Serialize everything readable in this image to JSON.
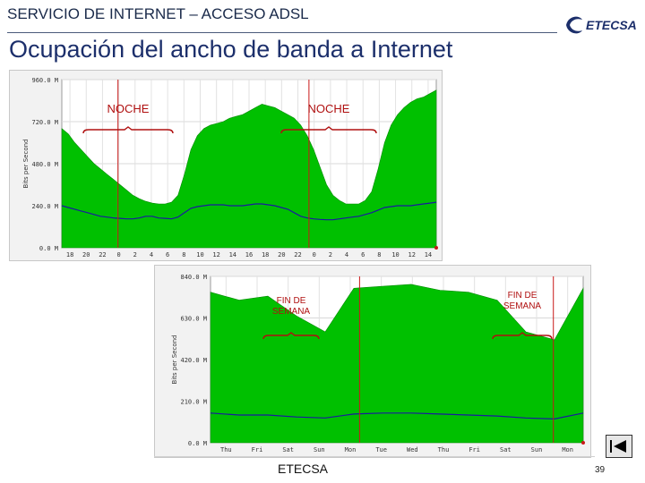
{
  "header": {
    "title": "SERVICIO DE INTERNET – ACCESO ADSL",
    "subtitle": "Ocupación del ancho de banda a Internet",
    "logo_text": "ETECSA"
  },
  "footer": {
    "label": "ETECSA",
    "page_number": "39"
  },
  "icons": {
    "nav": "end-show-icon",
    "logo": "etecsa-logo-icon"
  },
  "colors": {
    "fill": "#00c000",
    "line": "#1a1aa0",
    "marker": "#c81818",
    "annotation": "#b01010",
    "title": "#1c2f6b"
  },
  "chart_data": [
    {
      "type": "area",
      "ylabel": "Bits per Second",
      "ylim": [
        0,
        960000
      ],
      "yticks": [
        "0.0 M",
        "240.0 M",
        "480.0 M",
        "720.0 M",
        "960.0 M"
      ],
      "xticks": [
        "18",
        "20",
        "22",
        "0",
        "2",
        "4",
        "6",
        "8",
        "10",
        "12",
        "14",
        "16",
        "18",
        "20",
        "22",
        "0",
        "2",
        "4",
        "6",
        "8",
        "10",
        "12",
        "14"
      ],
      "annotations": [
        "NOCHE",
        "NOCHE"
      ],
      "grid": true,
      "series": [
        {
          "values": [
            680,
            650,
            600,
            560,
            520,
            480,
            450,
            420,
            390,
            360,
            330,
            300,
            280,
            265,
            255,
            250,
            250,
            260,
            300,
            420,
            560,
            640,
            680,
            700,
            710,
            720,
            740,
            750,
            760,
            780,
            800,
            820,
            810,
            800,
            780,
            760,
            740,
            700,
            640,
            560,
            460,
            360,
            300,
            270,
            250,
            250,
            250,
            270,
            320,
            450,
            600,
            700,
            760,
            800,
            830,
            850,
            860,
            880,
            900
          ]
        },
        {
          "values": [
            240,
            230,
            220,
            210,
            200,
            190,
            180,
            175,
            170,
            168,
            165,
            165,
            170,
            180,
            180,
            170,
            168,
            165,
            175,
            200,
            225,
            235,
            240,
            245,
            245,
            245,
            240,
            240,
            240,
            245,
            250,
            250,
            245,
            240,
            230,
            220,
            200,
            180,
            170,
            165,
            162,
            160,
            160,
            165,
            170,
            175,
            180,
            190,
            200,
            215,
            230,
            235,
            240,
            240,
            240,
            245,
            250,
            255,
            260
          ]
        }
      ]
    },
    {
      "type": "area",
      "ylabel": "Bits per Second",
      "ylim": [
        0,
        840000
      ],
      "yticks": [
        "0.0 M",
        "210.0 M",
        "420.0 M",
        "630.0 M",
        "840.0 M"
      ],
      "xticks": [
        "Thu",
        "Fri",
        "Sat",
        "Sun",
        "Mon",
        "Tue",
        "Wed",
        "Thu",
        "Fri",
        "Sat",
        "Sun",
        "Mon"
      ],
      "annotations": [
        "FIN DE SEMANA",
        "FIN DE SEMANA"
      ],
      "grid": true,
      "series": [
        {
          "values": [
            760,
            720,
            740,
            640,
            560,
            780,
            790,
            800,
            770,
            760,
            720,
            560,
            520,
            780
          ]
        },
        {
          "values": [
            150,
            140,
            140,
            130,
            125,
            145,
            150,
            150,
            145,
            140,
            135,
            125,
            120,
            150
          ]
        }
      ]
    }
  ]
}
